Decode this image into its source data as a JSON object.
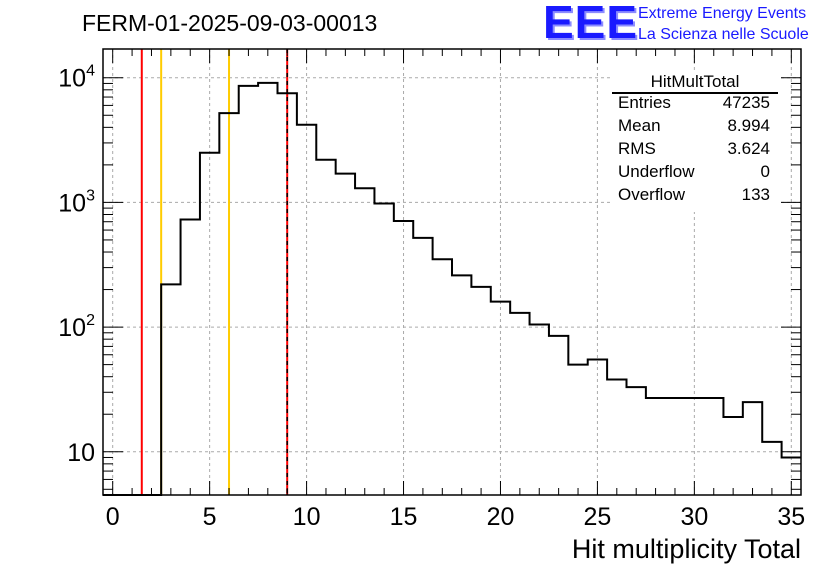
{
  "title": "FERM-01-2025-09-03-00013",
  "logo": {
    "text": "EEE",
    "line1": "Extreme Energy Events",
    "line2": "La Scienza nelle Scuole",
    "color": "#1a1aff"
  },
  "stats": {
    "name": "HitMultTotal",
    "rows": [
      {
        "label": "Entries",
        "value": "47235"
      },
      {
        "label": "Mean",
        "value": "8.994"
      },
      {
        "label": "RMS",
        "value": "3.624"
      },
      {
        "label": "Underflow",
        "value": "0"
      },
      {
        "label": "Overflow",
        "value": "133"
      }
    ]
  },
  "chart_data": {
    "type": "histogram",
    "xlabel": "Hit multiplicity Total",
    "ylabel": "",
    "yscale": "log",
    "xlim": [
      -0.5,
      35.5
    ],
    "ylim": [
      4.5,
      17000
    ],
    "grid": true,
    "x_ticks": [
      0,
      5,
      10,
      15,
      20,
      25,
      30,
      35
    ],
    "y_ticks": [
      {
        "value": 10,
        "label": "10"
      },
      {
        "value": 100,
        "base": "10",
        "exp": "2"
      },
      {
        "value": 1000,
        "base": "10",
        "exp": "3"
      },
      {
        "value": 10000,
        "base": "10",
        "exp": "4"
      }
    ],
    "bin_start": -0.5,
    "bin_width": 1,
    "counts": [
      0,
      0,
      0,
      220,
      730,
      2500,
      5200,
      8600,
      9100,
      7500,
      4200,
      2200,
      1700,
      1300,
      980,
      710,
      520,
      350,
      260,
      210,
      160,
      130,
      105,
      85,
      50,
      55,
      38,
      33,
      27,
      27,
      27,
      27,
      19,
      25,
      12,
      9
    ],
    "vlines": [
      {
        "x": 1.5,
        "color": "#ff0000",
        "style": "solid"
      },
      {
        "x": 2.5,
        "color": "#ffcc00",
        "style": "solid"
      },
      {
        "x": 6.0,
        "color": "#ffcc00",
        "style": "solid"
      },
      {
        "x": 9.0,
        "color": "#ff0000",
        "style": "solid"
      },
      {
        "x": 9.0,
        "color": "#000000",
        "style": "dashed"
      }
    ]
  }
}
